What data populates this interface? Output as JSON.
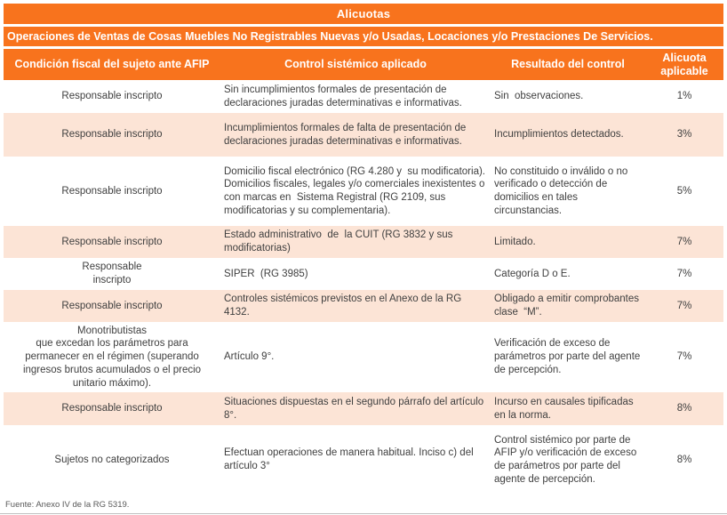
{
  "title": "Alicuotas",
  "subtitle": "Operaciones de Ventas de Cosas Muebles No Registrables Nuevas y/o Usadas, Locaciones y/o Prestaciones De Servicios.",
  "columns": [
    "Condición fiscal del sujeto ante AFIP",
    "Control sistémico aplicado",
    "Resultado del control",
    "Alicuota aplicable"
  ],
  "rows": [
    {
      "condicion": "Responsable inscripto",
      "control": "Sin incumplimientos formales de presentación de declaraciones juradas determinativas e informativas.",
      "resultado": "Sin  observaciones.",
      "alicuota": "1%"
    },
    {
      "condicion": "Responsable inscripto",
      "control": "Incumplimientos formales de falta de presentación de declaraciones juradas determinativas e informativas.",
      "resultado": "Incumplimientos detectados.",
      "alicuota": "3%"
    },
    {
      "condicion": "Responsable inscripto",
      "control": "Domicilio fiscal electrónico (RG 4.280 y  su modificatoria).\nDomicilios fiscales, legales y/o comerciales inexistentes o con marcas en  Sistema Registral (RG 2109, sus modificatorias y su complementaria).",
      "resultado": "No constituido o inválido o no verificado o detección de domicilios en tales circunstancias.",
      "alicuota": "5%"
    },
    {
      "condicion": "Responsable inscripto",
      "control": "Estado administrativo  de  la CUIT (RG 3832 y sus modificatorias)",
      "resultado": "Limitado.",
      "alicuota": "7%"
    },
    {
      "condicion": "Responsable\ninscripto",
      "control": "SIPER  (RG 3985)",
      "resultado": "Categoría D o E.",
      "alicuota": "7%"
    },
    {
      "condicion": "Responsable inscripto",
      "control": "Controles sistémicos previstos en el Anexo de la RG 4132.",
      "resultado": "Obligado a emitir comprobantes clase  “M”.",
      "alicuota": "7%"
    },
    {
      "condicion": "Monotributistas\nque excedan los parámetros para permanecer en el régimen (superando ingresos brutos acumulados o el precio unitario máximo).",
      "control": "Artículo 9°.",
      "resultado": "Verificación de exceso de parámetros por parte del agente de percepción.",
      "alicuota": "7%"
    },
    {
      "condicion": "Responsable inscripto",
      "control": "Situaciones dispuestas en el segundo párrafo del artículo 8°.",
      "resultado": "Incurso en causales tipificadas en la norma.",
      "alicuota": "8%"
    },
    {
      "condicion": "Sujetos no categorizados",
      "control": "Efectuan operaciones de manera habitual. Inciso c) del artículo 3°",
      "resultado": "Control sistémico por parte de AFIP y/o verificación de exceso de parámetros por parte del agente de percepción.",
      "alicuota": "8%"
    }
  ],
  "footer": "Fuente: Anexo IV de la RG 5319.",
  "colors": {
    "header_orange": "#F8731D",
    "row_peach": "#FCE4D6",
    "row_white": "#FFFFFF",
    "body_text": "#3F3F3F",
    "footer_text": "#595959",
    "bottom_rule": "#BFBFBF"
  }
}
